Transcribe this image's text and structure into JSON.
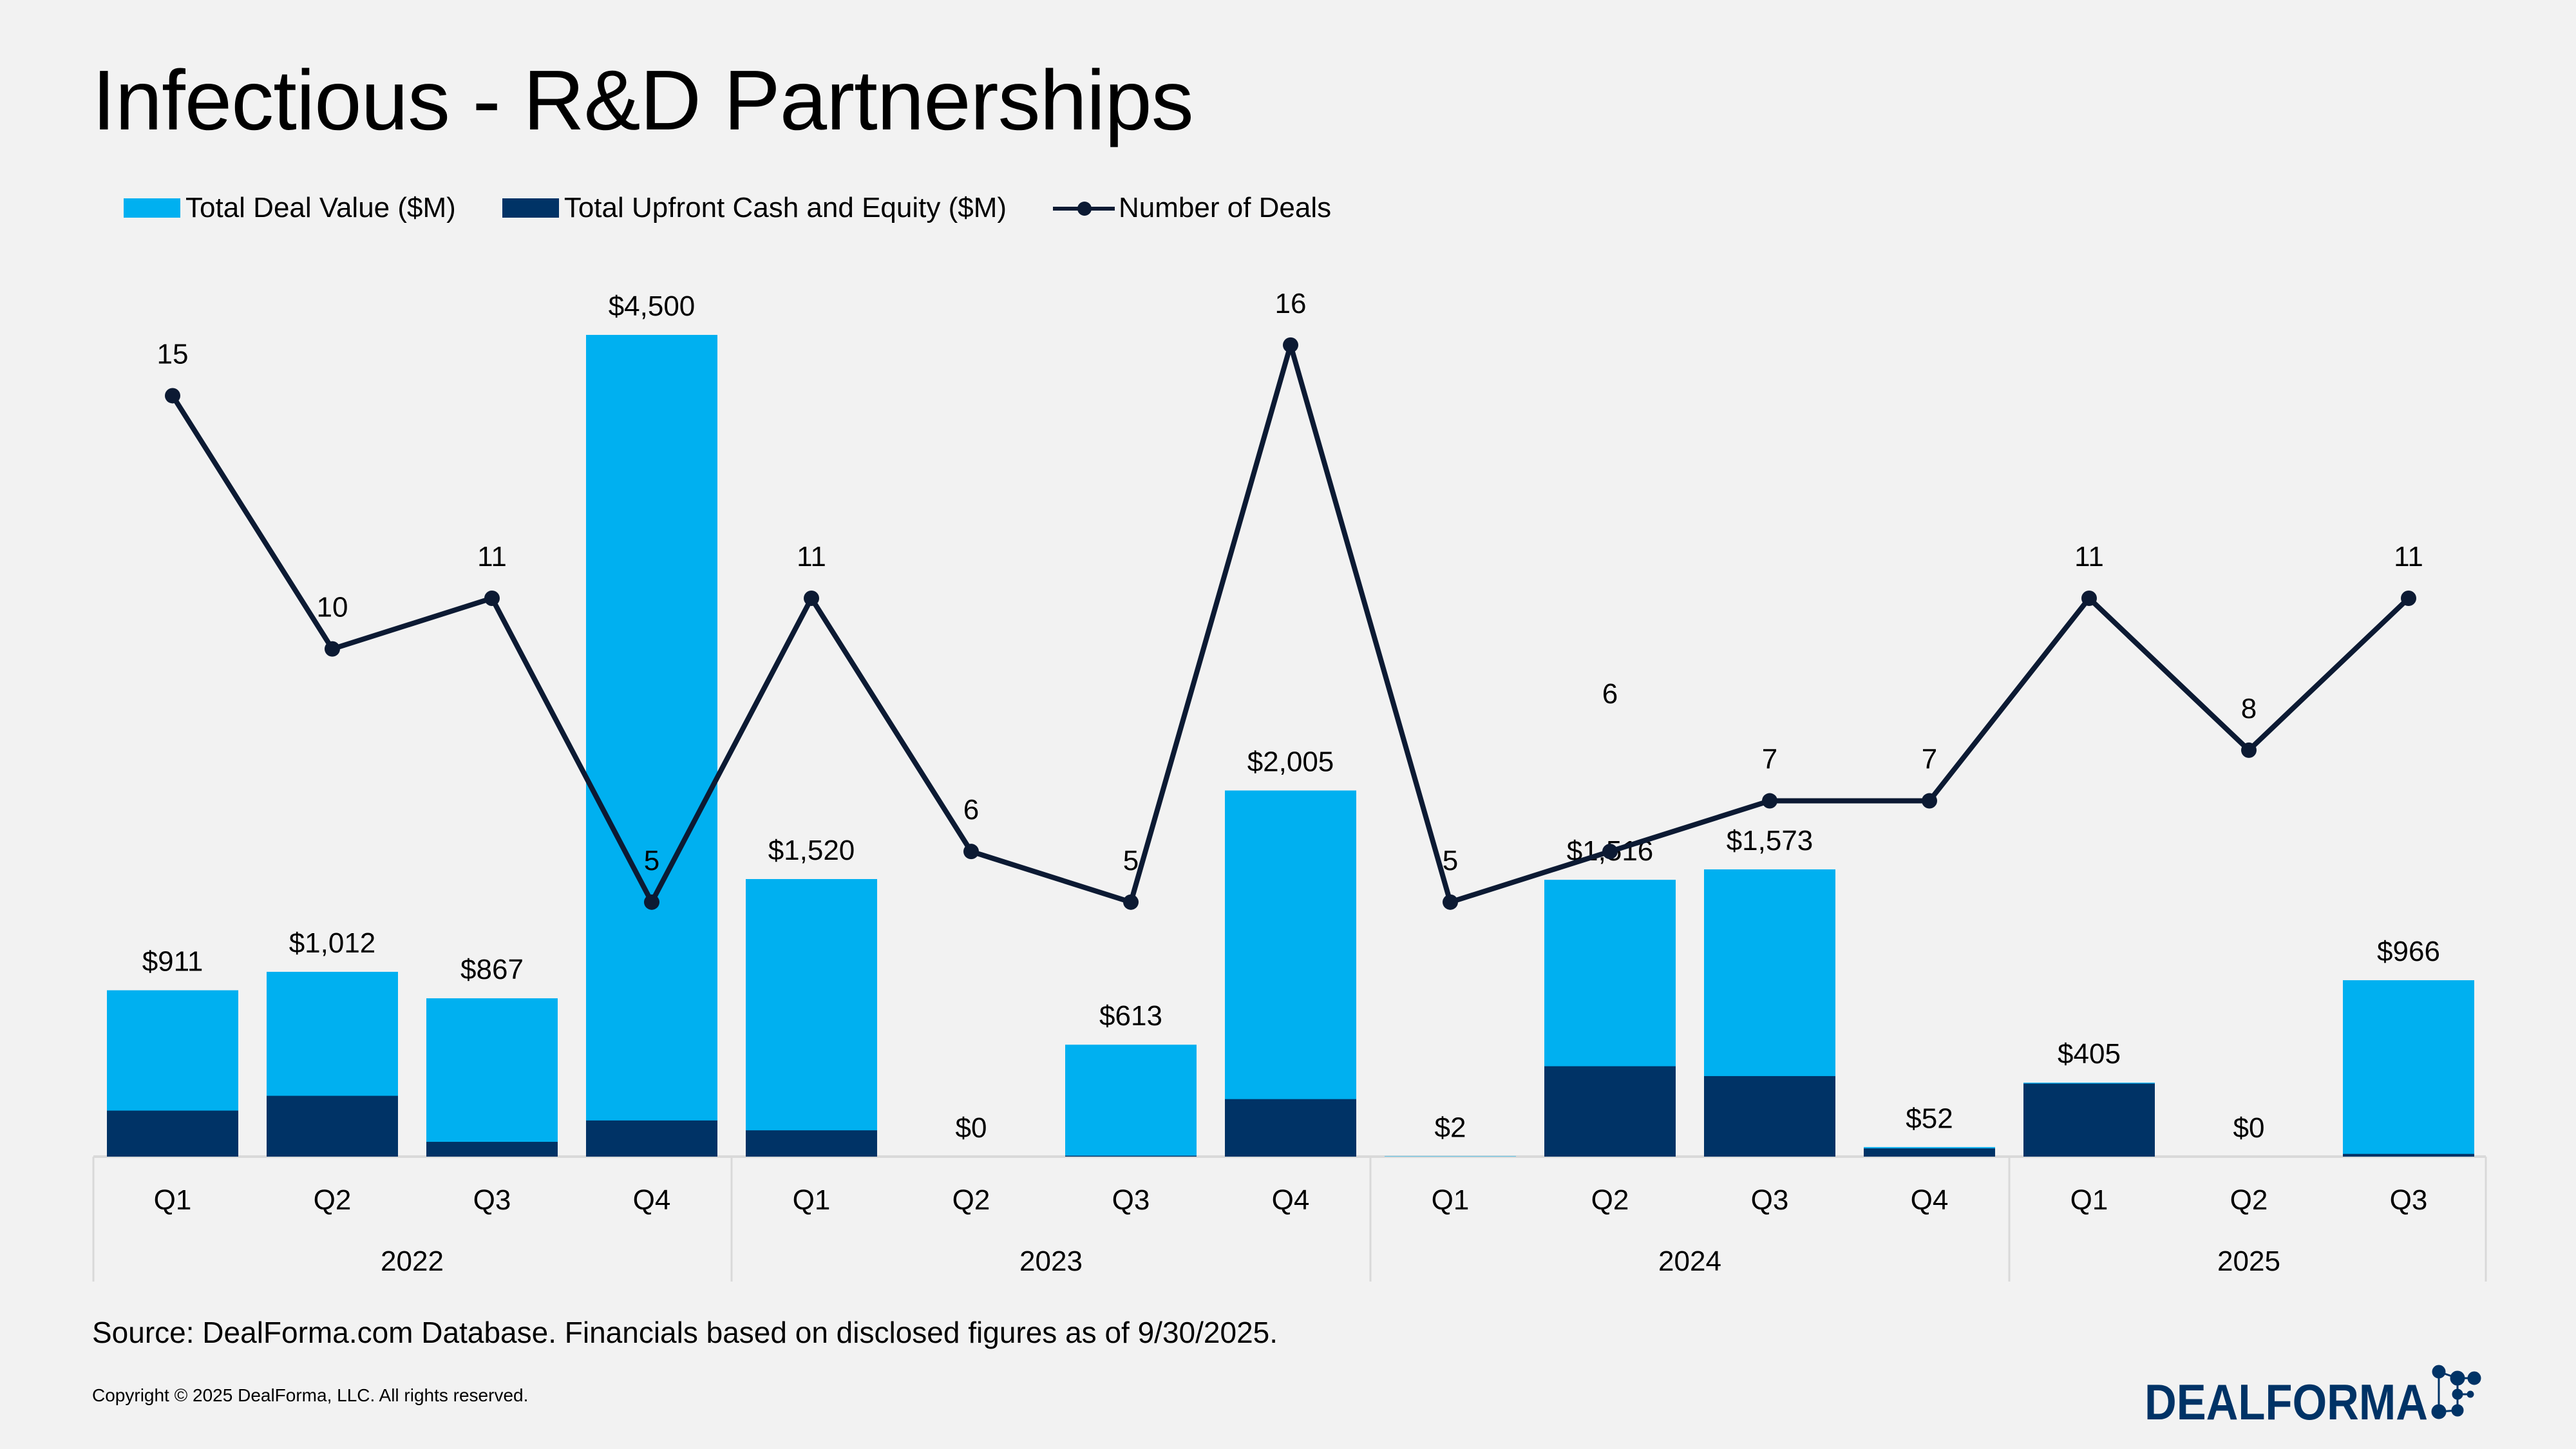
{
  "title": "Infectious - R&D Partnerships",
  "legend": [
    {
      "label": "Total Deal Value ($M)",
      "color": "#00b0f0"
    },
    {
      "label": "Total Upfront Cash and Equity ($M)",
      "color": "#003366"
    },
    {
      "label": "Number of Deals",
      "color": "#0c1a33"
    }
  ],
  "chart_data": {
    "type": "bar",
    "title": "Infectious - R&D Partnerships",
    "stacked_overlay": true,
    "grid": false,
    "legend_placement": "top-left",
    "groups": [
      "2022",
      "2023",
      "2024",
      "2025"
    ],
    "categories": [
      "Q1",
      "Q2",
      "Q3",
      "Q4",
      "Q1",
      "Q2",
      "Q3",
      "Q4",
      "Q1",
      "Q2",
      "Q3",
      "Q4",
      "Q1",
      "Q2",
      "Q3"
    ],
    "category_groups": [
      "2022",
      "2022",
      "2022",
      "2022",
      "2023",
      "2023",
      "2023",
      "2023",
      "2024",
      "2024",
      "2024",
      "2024",
      "2025",
      "2025",
      "2025"
    ],
    "series": [
      {
        "name": "Total Deal Value ($M)",
        "type": "bar",
        "values": [
          911,
          1012,
          867,
          4500,
          1520,
          0,
          613,
          2005,
          2,
          1516,
          1573,
          52,
          405,
          0,
          966
        ],
        "labels": [
          "$911",
          "$1,012",
          "$867",
          "$4,500",
          "$1,520",
          "$0",
          "$613",
          "$2,005",
          "$2",
          "$1,516",
          "$1,573",
          "$52",
          "$405",
          "$0",
          "$966"
        ]
      },
      {
        "name": "Total Upfront Cash and Equity ($M)",
        "type": "bar",
        "values": [
          252,
          333,
          81,
          198,
          144,
          0,
          5,
          315,
          0,
          495,
          441,
          45,
          400,
          0,
          15
        ]
      },
      {
        "name": "Number of Deals",
        "type": "line",
        "values": [
          15,
          10,
          11,
          5,
          11,
          6,
          5,
          16,
          5,
          6,
          7,
          7,
          11,
          8,
          11
        ]
      }
    ],
    "ylim_value": [
      0,
      4500
    ],
    "ylim_deals": [
      0,
      16
    ]
  },
  "footer": {
    "source": "Source: DealForma.com Database. Financials based on disclosed figures as of 9/30/2025.",
    "copyright": "Copyright © 2025 DealForma, LLC. All rights reserved."
  },
  "logo": {
    "text": "DealForma",
    "color": "#003366"
  }
}
